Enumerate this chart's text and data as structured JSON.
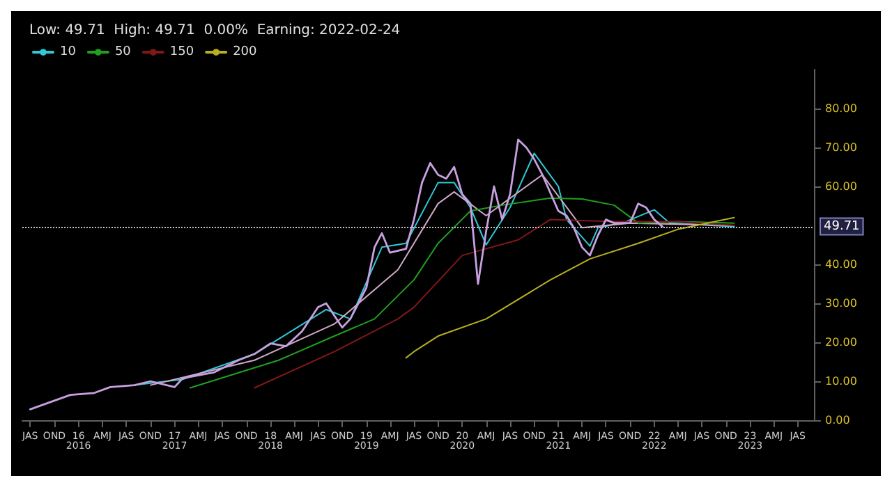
{
  "chart_data": {
    "type": "line",
    "title": "Low: 49.71  High: 49.71  0.00%  Earning: 2022-02-24",
    "legend": "top left",
    "grid": false,
    "marker": "none",
    "line_style": "solid",
    "xlim": [
      "2015-06",
      "2023-09"
    ],
    "xticks": [
      {
        "value": "2015-07",
        "label": "JAS"
      },
      {
        "value": "2015-10",
        "label": "OND"
      },
      {
        "value": "2016-01",
        "label": "16\n2016"
      },
      {
        "value": "2016-04",
        "label": "AMJ"
      },
      {
        "value": "2016-07",
        "label": "JAS"
      },
      {
        "value": "2016-10",
        "label": "OND"
      },
      {
        "value": "2017-01",
        "label": "17\n2017"
      },
      {
        "value": "2017-04",
        "label": "AMJ"
      },
      {
        "value": "2017-07",
        "label": "JAS"
      },
      {
        "value": "2017-10",
        "label": "OND"
      },
      {
        "value": "2018-01",
        "label": "18\n2018"
      },
      {
        "value": "2018-04",
        "label": "AMJ"
      },
      {
        "value": "2018-07",
        "label": "JAS"
      },
      {
        "value": "2018-10",
        "label": "OND"
      },
      {
        "value": "2019-01",
        "label": "19\n2019"
      },
      {
        "value": "2019-04",
        "label": "AMJ"
      },
      {
        "value": "2019-07",
        "label": "JAS"
      },
      {
        "value": "2019-10",
        "label": "OND"
      },
      {
        "value": "2020-01",
        "label": "20\n2020"
      },
      {
        "value": "2020-04",
        "label": "AMJ"
      },
      {
        "value": "2020-07",
        "label": "JAS"
      },
      {
        "value": "2020-10",
        "label": "OND"
      },
      {
        "value": "2021-01",
        "label": "21\n2021"
      },
      {
        "value": "2021-04",
        "label": "AMJ"
      },
      {
        "value": "2021-07",
        "label": "JAS"
      },
      {
        "value": "2021-10",
        "label": "OND"
      },
      {
        "value": "2022-01",
        "label": "22\n2022"
      },
      {
        "value": "2022-04",
        "label": "AMJ"
      },
      {
        "value": "2022-07",
        "label": "JAS"
      },
      {
        "value": "2022-10",
        "label": "OND"
      },
      {
        "value": "2023-01",
        "label": "23\n2023"
      },
      {
        "value": "2023-04",
        "label": "AMJ"
      },
      {
        "value": "2023-07",
        "label": "JAS"
      }
    ],
    "ylim": [
      0,
      90
    ],
    "yticks": [
      {
        "value": 0,
        "label": "0.00"
      },
      {
        "value": 10,
        "label": "10.00"
      },
      {
        "value": 20,
        "label": "20.00"
      },
      {
        "value": 30,
        "label": "30.00"
      },
      {
        "value": 40,
        "label": "40.00"
      },
      {
        "value": 60,
        "label": "60.00"
      },
      {
        "value": 70,
        "label": "70.00"
      },
      {
        "value": 80,
        "label": "80.00"
      }
    ],
    "ref_lines": [
      {
        "axis": "y",
        "value": 49.71,
        "label": "49.71",
        "color": "#c0c0c0",
        "line_style": "dotted"
      }
    ],
    "series": [
      {
        "color": "#c8a0e0",
        "x": [
          "2015-07",
          "2015-12",
          "2016-03",
          "2016-05",
          "2016-08",
          "2016-10",
          "2017-01",
          "2017-02",
          "2017-06",
          "2017-09",
          "2017-11",
          "2018-01",
          "2018-03",
          "2018-05",
          "2018-07",
          "2018-08",
          "2018-10",
          "2018-11",
          "2019-01",
          "2019-02",
          "2019-03",
          "2019-04",
          "2019-06",
          "2019-07",
          "2019-08",
          "2019-09",
          "2019-10",
          "2019-11",
          "2019-12",
          "2020-01",
          "2020-02",
          "2020-03",
          "2020-04",
          "2020-05",
          "2020-06",
          "2020-07",
          "2020-08",
          "2020-09",
          "2020-10",
          "2020-11",
          "2021-01",
          "2021-02",
          "2021-03",
          "2021-04",
          "2021-05",
          "2021-06",
          "2021-07",
          "2021-08",
          "2021-10",
          "2021-11",
          "2021-12",
          "2022-01",
          "2022-02"
        ],
        "values": [
          2.8,
          6.5,
          7,
          8.5,
          9,
          10,
          8.5,
          10.8,
          12.3,
          15.4,
          17,
          19.7,
          19,
          22.8,
          29,
          30,
          23.8,
          26,
          34,
          44.4,
          48,
          43,
          44,
          51.5,
          61,
          66,
          63,
          62,
          65,
          58,
          55.6,
          35,
          48.5,
          60,
          51.5,
          58,
          72,
          70,
          67,
          63,
          53.7,
          52.5,
          49.4,
          44.4,
          42.3,
          47.5,
          51.5,
          50.6,
          50.6,
          55.6,
          54.6,
          51.5,
          49.71
        ]
      },
      {
        "name": "10",
        "color": "#30c8d8",
        "x": [
          "2016-08",
          "2017-02",
          "2017-11",
          "2018-08",
          "2018-11",
          "2019-03",
          "2019-06",
          "2019-10",
          "2019-12",
          "2020-02",
          "2020-04",
          "2020-07",
          "2020-10",
          "2021-01",
          "2021-02",
          "2021-05",
          "2021-06",
          "2021-09",
          "2022-01",
          "2022-03",
          "2022-11"
        ],
        "values": [
          9,
          10.5,
          17,
          28.4,
          26,
          44.4,
          45.4,
          61,
          61,
          54.6,
          45,
          54.6,
          68.5,
          60,
          51.5,
          44.7,
          49.4,
          50.6,
          54,
          50.6,
          49.7
        ]
      },
      {
        "color": "#d0a8c8",
        "x": [
          "2016-10",
          "2017-11",
          "2018-09",
          "2019-05",
          "2019-10",
          "2019-12",
          "2020-04",
          "2020-11",
          "2021-04",
          "2021-10",
          "2022-11"
        ],
        "values": [
          9,
          15.4,
          24.7,
          38.6,
          55.6,
          58.6,
          52.5,
          63,
          49.4,
          50.6,
          50
        ]
      },
      {
        "name": "50",
        "color": "#20a020",
        "x": [
          "2017-03",
          "2018-02",
          "2018-09",
          "2019-02",
          "2019-07",
          "2019-10",
          "2020-02",
          "2020-06",
          "2020-12",
          "2021-04",
          "2021-08",
          "2021-11",
          "2022-04",
          "2022-11"
        ],
        "values": [
          8.3,
          15.4,
          21.6,
          26,
          36,
          45.4,
          53.7,
          55.2,
          57,
          56.8,
          55.2,
          50.6,
          51,
          50.6
        ]
      },
      {
        "name": "150",
        "color": "#801818",
        "x": [
          "2017-11",
          "2018-09",
          "2019-05",
          "2019-07",
          "2020-01",
          "2020-08",
          "2020-12",
          "2021-08",
          "2022-04",
          "2022-11"
        ],
        "values": [
          8.3,
          17.6,
          26,
          29,
          42.3,
          46.3,
          51.5,
          51,
          51,
          50
        ]
      },
      {
        "name": "200",
        "color": "#b8b020",
        "x": [
          "2019-06",
          "2019-07",
          "2019-10",
          "2020-04",
          "2020-12",
          "2021-05",
          "2021-11",
          "2022-04",
          "2022-11"
        ],
        "values": [
          16,
          17.6,
          21.6,
          26,
          36,
          41.4,
          45.4,
          49,
          52
        ]
      }
    ]
  }
}
